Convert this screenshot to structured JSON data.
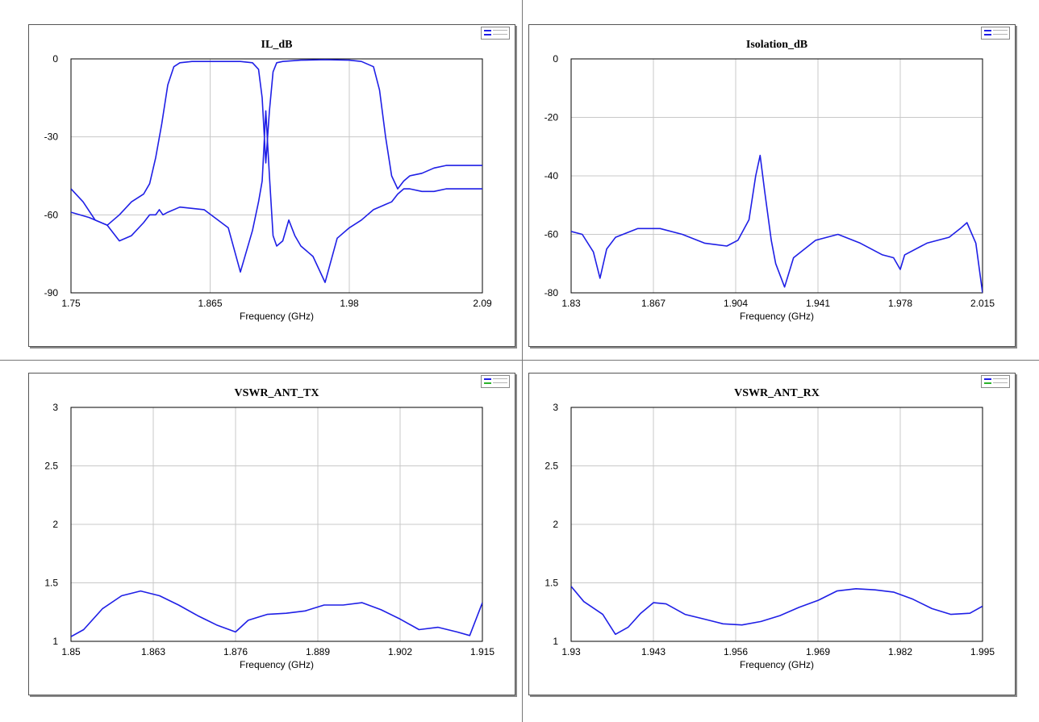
{
  "colors": {
    "trace": "#1f1fe6",
    "grid": "#c8c8c8",
    "frame": "#000000",
    "legend_alt": "#2bb32b"
  },
  "chart_data": [
    {
      "type": "line",
      "title": "IL_dB",
      "xlabel": "Frequency (GHz)",
      "ylabel": "",
      "xlim": [
        1.75,
        2.09
      ],
      "ylim": [
        -90,
        0
      ],
      "xticks": [
        "1.75",
        "1.865",
        "1.98",
        "2.09"
      ],
      "yticks": [
        "0",
        "-30",
        "-60",
        "-90"
      ],
      "xtick_values": [
        1.75,
        1.865,
        1.98,
        2.09
      ],
      "ytick_values": [
        0,
        -30,
        -60,
        -90
      ],
      "grid": true,
      "legend": "top-right",
      "series": [
        {
          "x": [
            1.75,
            1.765,
            1.78,
            1.79,
            1.8,
            1.81,
            1.815,
            1.82,
            1.823,
            1.826,
            1.83,
            1.84,
            1.86,
            1.88,
            1.89,
            1.9,
            1.905,
            1.908,
            1.911,
            1.914,
            1.917,
            1.92,
            1.925,
            1.93,
            1.935,
            1.94,
            1.95,
            1.96,
            1.97,
            1.98,
            1.99,
            2.0,
            2.01,
            2.015,
            2.02,
            2.025,
            2.03,
            2.04,
            2.05,
            2.06,
            2.07,
            2.08,
            2.09
          ],
          "values": [
            -59,
            -61,
            -64,
            -70,
            -68,
            -63,
            -60,
            -60,
            -58,
            -60,
            -59,
            -57,
            -58,
            -65,
            -82,
            -66,
            -55,
            -47,
            -20,
            -45,
            -68,
            -72,
            -70,
            -62,
            -68,
            -72,
            -76,
            -86,
            -69,
            -65,
            -62,
            -58,
            -56,
            -55,
            -52,
            -50,
            -50,
            -51,
            -51,
            -50,
            -50,
            -50,
            -50
          ]
        },
        {
          "x": [
            1.75,
            1.76,
            1.77,
            1.78,
            1.79,
            1.8,
            1.81,
            1.815,
            1.82,
            1.825,
            1.83,
            1.835,
            1.84,
            1.85,
            1.87,
            1.89,
            1.9,
            1.905,
            1.908,
            1.911,
            1.914,
            1.917,
            1.92,
            1.925,
            1.94,
            1.96,
            1.98,
            1.99,
            2.0,
            2.005,
            2.01,
            2.015,
            2.02,
            2.025,
            2.03,
            2.04,
            2.05,
            2.06,
            2.07,
            2.09
          ],
          "values": [
            -50,
            -55,
            -62,
            -64,
            -60,
            -55,
            -52,
            -48,
            -38,
            -25,
            -10,
            -3,
            -1.5,
            -1,
            -1,
            -1,
            -1.5,
            -4,
            -15,
            -40,
            -20,
            -5,
            -1.5,
            -1,
            -0.5,
            -0.3,
            -0.5,
            -1,
            -3,
            -12,
            -30,
            -45,
            -50,
            -47,
            -45,
            -44,
            -42,
            -41,
            -41,
            -41
          ]
        }
      ]
    },
    {
      "type": "line",
      "title": "Isolation_dB",
      "xlabel": "Frequency (GHz)",
      "ylabel": "",
      "xlim": [
        1.83,
        2.015
      ],
      "ylim": [
        -80,
        0
      ],
      "xticks": [
        "1.83",
        "1.867",
        "1.904",
        "1.941",
        "1.978",
        "2.015"
      ],
      "yticks": [
        "0",
        "-20",
        "-40",
        "-60",
        "-80"
      ],
      "xtick_values": [
        1.83,
        1.867,
        1.904,
        1.941,
        1.978,
        2.015
      ],
      "ytick_values": [
        0,
        -20,
        -40,
        -60,
        -80
      ],
      "grid": true,
      "legend": "top-right",
      "series": [
        {
          "x": [
            1.83,
            1.835,
            1.84,
            1.843,
            1.846,
            1.85,
            1.86,
            1.87,
            1.88,
            1.89,
            1.9,
            1.905,
            1.91,
            1.913,
            1.915,
            1.917,
            1.92,
            1.922,
            1.926,
            1.93,
            1.94,
            1.95,
            1.96,
            1.97,
            1.975,
            1.978,
            1.98,
            1.99,
            2.0,
            2.005,
            2.008,
            2.012,
            2.015
          ],
          "values": [
            -59,
            -60,
            -66,
            -75,
            -65,
            -61,
            -58,
            -58,
            -60,
            -63,
            -64,
            -62,
            -55,
            -40,
            -33,
            -45,
            -62,
            -70,
            -78,
            -68,
            -62,
            -60,
            -63,
            -67,
            -68,
            -72,
            -67,
            -63,
            -61,
            -58,
            -56,
            -63,
            -80
          ]
        }
      ]
    },
    {
      "type": "line",
      "title": "VSWR_ANT_TX",
      "xlabel": "Frequency (GHz)",
      "ylabel": "",
      "xlim": [
        1.85,
        1.915
      ],
      "ylim": [
        1,
        3
      ],
      "xticks": [
        "1.85",
        "1.863",
        "1.876",
        "1.889",
        "1.902",
        "1.915"
      ],
      "yticks": [
        "3",
        "2.5",
        "2",
        "1.5",
        "1"
      ],
      "xtick_values": [
        1.85,
        1.863,
        1.876,
        1.889,
        1.902,
        1.915
      ],
      "ytick_values": [
        3,
        2.5,
        2,
        1.5,
        1
      ],
      "grid": true,
      "legend": "top-right",
      "series": [
        {
          "x": [
            1.85,
            1.852,
            1.855,
            1.858,
            1.861,
            1.864,
            1.867,
            1.87,
            1.873,
            1.876,
            1.878,
            1.881,
            1.884,
            1.887,
            1.89,
            1.893,
            1.896,
            1.899,
            1.902,
            1.905,
            1.908,
            1.911,
            1.913,
            1.915
          ],
          "values": [
            1.04,
            1.1,
            1.28,
            1.39,
            1.43,
            1.39,
            1.31,
            1.22,
            1.14,
            1.08,
            1.18,
            1.23,
            1.24,
            1.26,
            1.31,
            1.31,
            1.33,
            1.27,
            1.19,
            1.1,
            1.12,
            1.08,
            1.05,
            1.33
          ]
        }
      ]
    },
    {
      "type": "line",
      "title": "VSWR_ANT_RX",
      "xlabel": "Frequency (GHz)",
      "ylabel": "",
      "xlim": [
        1.93,
        1.995
      ],
      "ylim": [
        1,
        3
      ],
      "xticks": [
        "1.93",
        "1.943",
        "1.956",
        "1.969",
        "1.982",
        "1.995"
      ],
      "yticks": [
        "3",
        "2.5",
        "2",
        "1.5",
        "1"
      ],
      "xtick_values": [
        1.93,
        1.943,
        1.956,
        1.969,
        1.982,
        1.995
      ],
      "ytick_values": [
        3,
        2.5,
        2,
        1.5,
        1
      ],
      "grid": true,
      "legend": "top-right",
      "series": [
        {
          "x": [
            1.93,
            1.932,
            1.935,
            1.937,
            1.939,
            1.941,
            1.943,
            1.945,
            1.948,
            1.951,
            1.954,
            1.957,
            1.96,
            1.963,
            1.966,
            1.969,
            1.972,
            1.975,
            1.978,
            1.981,
            1.984,
            1.987,
            1.99,
            1.993,
            1.995
          ],
          "values": [
            1.47,
            1.34,
            1.23,
            1.06,
            1.12,
            1.24,
            1.33,
            1.32,
            1.23,
            1.19,
            1.15,
            1.14,
            1.17,
            1.22,
            1.29,
            1.35,
            1.43,
            1.45,
            1.44,
            1.42,
            1.36,
            1.28,
            1.23,
            1.24,
            1.3
          ]
        }
      ]
    }
  ]
}
